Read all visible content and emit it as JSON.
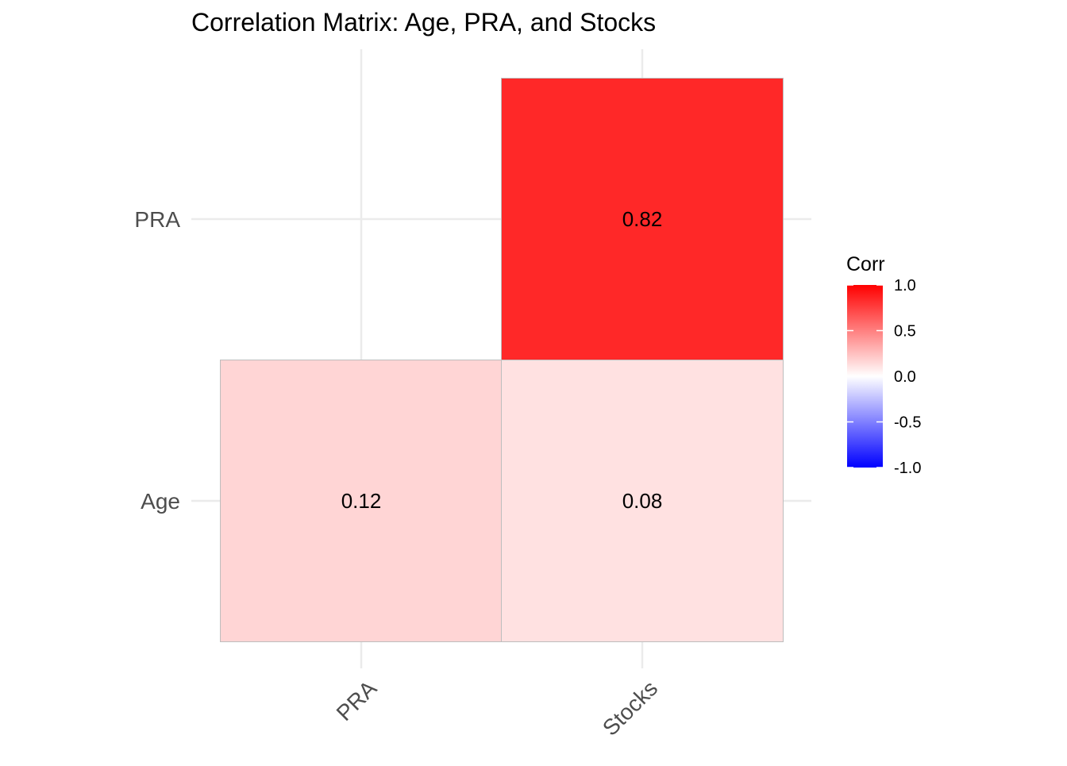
{
  "chart_data": {
    "type": "heatmap",
    "title": "Correlation Matrix: Age, PRA, and Stocks",
    "x_categories": [
      "PRA",
      "Stocks"
    ],
    "y_categories": [
      "Age",
      "PRA"
    ],
    "cells": [
      {
        "x": "PRA",
        "y": "Age",
        "value": 0.12,
        "label": "0.12"
      },
      {
        "x": "Stocks",
        "y": "Age",
        "value": 0.08,
        "label": "0.08"
      },
      {
        "x": "Stocks",
        "y": "PRA",
        "value": 0.82,
        "label": "0.82"
      }
    ],
    "legend": {
      "title": "Corr",
      "position": "right",
      "ticks": [
        1.0,
        0.5,
        0.0,
        -0.5,
        -1.0
      ],
      "tick_labels": [
        "1.0",
        "0.5",
        "0.0",
        "-0.5",
        "-1.0"
      ],
      "low_color": "#0000ff",
      "mid_color": "#ffffff",
      "high_color": "#ff0000",
      "limits": [
        -1,
        1
      ]
    },
    "grid": true,
    "x_tick_rotation_deg": -45
  }
}
